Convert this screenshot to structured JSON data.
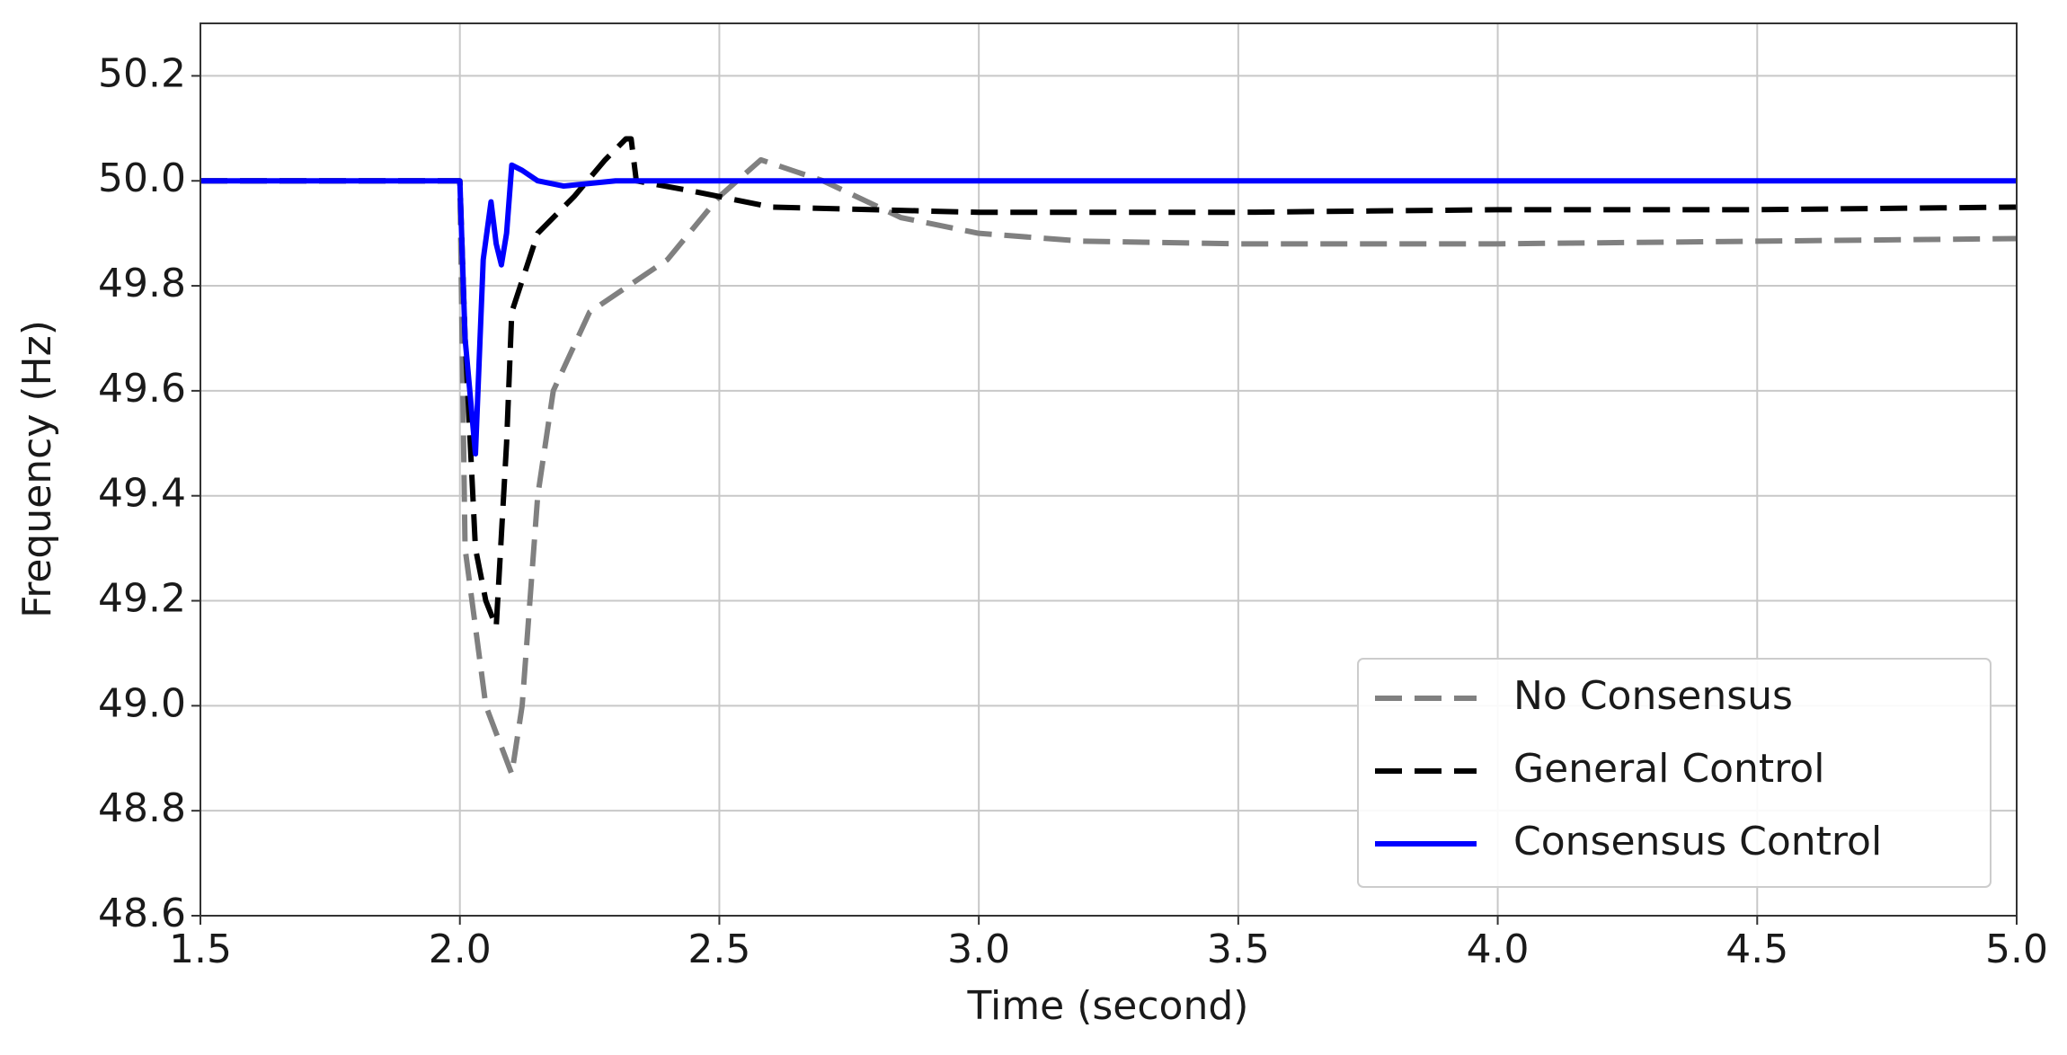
{
  "chart_data": {
    "type": "line",
    "xlabel": "Time (second)",
    "ylabel": "Frequency (Hz)",
    "xlim": [
      1.5,
      5.0
    ],
    "ylim": [
      48.6,
      50.3
    ],
    "xticks": [
      1.5,
      {
        "value": 2,
        "label": "2.0"
      },
      2.5,
      {
        "value": 3,
        "label": "3.0"
      },
      3.5,
      {
        "value": 4,
        "label": "4.0"
      },
      4.5,
      {
        "value": 5,
        "label": "5.0"
      }
    ],
    "yticks": [
      48.6,
      48.8,
      {
        "value": 49,
        "label": "49.0"
      },
      49.2,
      49.4,
      49.6,
      49.8,
      {
        "value": 50,
        "label": "50.0"
      },
      50.2
    ],
    "grid": true,
    "legend": "lower right",
    "series": [
      {
        "name": "No Consensus",
        "color": "#808080",
        "style": "dashed",
        "x": [
          1.5,
          2.0,
          2.01,
          2.05,
          2.1,
          2.12,
          2.15,
          2.18,
          2.25,
          2.4,
          2.5,
          2.58,
          2.7,
          2.85,
          3.0,
          3.2,
          3.5,
          4.0,
          4.5,
          5.0
        ],
        "values": [
          50.0,
          50.0,
          49.3,
          49.0,
          48.87,
          49.0,
          49.4,
          49.6,
          49.75,
          49.85,
          49.97,
          50.04,
          50.0,
          49.93,
          49.9,
          49.885,
          49.88,
          49.88,
          49.885,
          49.89
        ]
      },
      {
        "name": "General Control",
        "color": "#000000",
        "style": "dashed",
        "x": [
          1.5,
          2.0,
          2.01,
          2.03,
          2.05,
          2.07,
          2.09,
          2.1,
          2.15,
          2.22,
          2.28,
          2.32,
          2.33,
          2.34,
          2.45,
          2.6,
          3.0,
          3.5,
          4.0,
          4.5,
          5.0
        ],
        "values": [
          50.0,
          50.0,
          49.7,
          49.3,
          49.2,
          49.15,
          49.5,
          49.75,
          49.9,
          49.97,
          50.04,
          50.08,
          50.08,
          50.0,
          49.98,
          49.95,
          49.94,
          49.94,
          49.945,
          49.945,
          49.95
        ]
      },
      {
        "name": "Consensus Control",
        "color": "#0000ff",
        "style": "solid",
        "x": [
          1.5,
          2.0,
          2.01,
          2.03,
          2.045,
          2.06,
          2.07,
          2.08,
          2.09,
          2.1,
          2.12,
          2.15,
          2.2,
          2.3,
          5.0
        ],
        "values": [
          50.0,
          50.0,
          49.7,
          49.48,
          49.85,
          49.96,
          49.88,
          49.84,
          49.9,
          50.03,
          50.02,
          50.0,
          49.99,
          50.0,
          50.0
        ]
      }
    ]
  }
}
